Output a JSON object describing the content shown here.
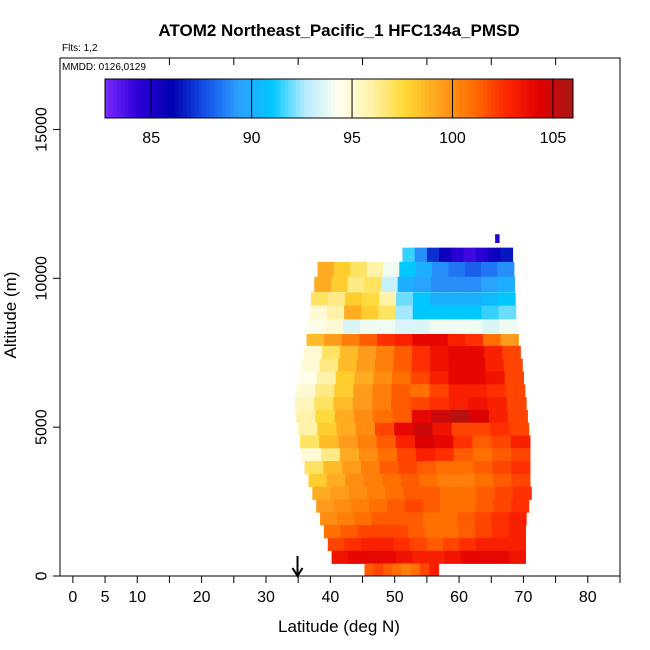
{
  "chart_data": {
    "type": "heatmap",
    "title": "ATOM2 Northeast_Pacific_1 HFC134a_PMSD",
    "flights_label": "Flts: 1,2",
    "mmdd_label": "MMDD: 0126,0129",
    "xlabel": "Latitude (deg N)",
    "ylabel": "Altitude (m)",
    "xlim": [
      -2,
      85
    ],
    "ylim": [
      0,
      17400
    ],
    "x_ticks": [
      0,
      5,
      10,
      20,
      30,
      40,
      50,
      60,
      70,
      80
    ],
    "x_tick_labels": [
      "0",
      "5",
      "10",
      "20",
      "30",
      "40",
      "50",
      "60",
      "70",
      "80"
    ],
    "x_minor_ticks": [
      15,
      25,
      35,
      45,
      55,
      65,
      75,
      85
    ],
    "y_ticks": [
      0,
      5000,
      10000,
      15000
    ],
    "y_tick_labels": [
      "0",
      "5000",
      "10000",
      "15000"
    ],
    "colorbar": {
      "min": 82.7,
      "max": 106.0,
      "ticks": [
        85,
        90,
        95,
        100,
        105
      ],
      "tick_labels": [
        "85",
        "90",
        "95",
        "100",
        "105"
      ],
      "colors": [
        "#7b2bff",
        "#2c00d6",
        "#0000b0",
        "#1450e8",
        "#2ea0ff",
        "#00c8ff",
        "#b8ecff",
        "#ffffee",
        "#fff2a8",
        "#ffd830",
        "#ffa020",
        "#ff7000",
        "#ff2800",
        "#e00000",
        "#a81818"
      ]
    },
    "arrow_latitude": 34.9,
    "bands": [
      {
        "alt": 11200,
        "h": 280,
        "lat0": 65.6,
        "lat1": 66.2,
        "values": [
          84.5
        ]
      },
      {
        "alt": 10550,
        "h": 480,
        "lat0": 51.2,
        "lat1": 68.3,
        "values": [
          91.5,
          89,
          87,
          85.5,
          84.5,
          84,
          84.5,
          85.5,
          86.5
        ]
      },
      {
        "alt": 10050,
        "h": 500,
        "lat0": 38.0,
        "lat1": 68.5,
        "values": [
          99,
          98,
          97,
          96,
          94,
          91,
          90,
          89,
          88.5,
          88,
          88.5,
          89
        ]
      },
      {
        "alt": 9550,
        "h": 500,
        "lat0": 37.5,
        "lat1": 68.6,
        "values": [
          99,
          98,
          96.5,
          97,
          93,
          90,
          89.5,
          89,
          89,
          89,
          89.5,
          90
        ]
      },
      {
        "alt": 9080,
        "h": 450,
        "lat0": 37.0,
        "lat1": 68.7,
        "values": [
          97,
          96.5,
          98,
          97.5,
          96,
          92,
          91,
          90,
          90,
          90,
          90.5,
          91
        ]
      },
      {
        "alt": 8620,
        "h": 460,
        "lat0": 36.8,
        "lat1": 68.8,
        "values": [
          95,
          96,
          99,
          98,
          97,
          92.5,
          91,
          91,
          91,
          91,
          91.5,
          92
        ]
      },
      {
        "alt": 8160,
        "h": 460,
        "lat0": 36.5,
        "lat1": 69.0,
        "values": [
          94.5,
          95,
          93.5,
          94,
          94,
          93.5,
          93.5,
          94,
          94,
          94,
          93.5,
          94
        ]
      },
      {
        "alt": 7730,
        "h": 400,
        "lat0": 36.3,
        "lat1": 69.2,
        "values": [
          98.5,
          99.5,
          100.5,
          101.5,
          102.5,
          103,
          104,
          104,
          103,
          102.5,
          101,
          99.5
        ]
      },
      {
        "alt": 7300,
        "h": 430,
        "lat0": 35.9,
        "lat1": 69.5,
        "values": [
          95,
          97,
          98.5,
          99.5,
          100.5,
          101.5,
          102.5,
          103.5,
          104,
          104,
          103,
          102
        ]
      },
      {
        "alt": 6870,
        "h": 430,
        "lat0": 35.5,
        "lat1": 69.8,
        "values": [
          95,
          96.5,
          98.5,
          99.5,
          100.5,
          101.5,
          102.5,
          103.5,
          104,
          104,
          103,
          102
        ]
      },
      {
        "alt": 6440,
        "h": 430,
        "lat0": 35.0,
        "lat1": 70.0,
        "values": [
          94.5,
          96,
          98,
          99,
          100,
          101,
          102,
          103,
          104,
          104,
          103.5,
          102
        ]
      },
      {
        "alt": 6010,
        "h": 430,
        "lat0": 34.7,
        "lat1": 70.2,
        "values": [
          95,
          96.5,
          98,
          99.5,
          100.5,
          101.5,
          101,
          102,
          103,
          103,
          102.5,
          102
        ]
      },
      {
        "alt": 5580,
        "h": 430,
        "lat0": 34.5,
        "lat1": 70.4,
        "values": [
          95.5,
          97,
          98.5,
          99.5,
          100.5,
          101.5,
          102,
          102.5,
          103,
          103.5,
          103,
          102
        ]
      },
      {
        "alt": 5150,
        "h": 430,
        "lat0": 34.7,
        "lat1": 70.6,
        "values": [
          96,
          97.5,
          99,
          100,
          101,
          101.5,
          104,
          105,
          105.5,
          104.5,
          103,
          102
        ]
      },
      {
        "alt": 4720,
        "h": 430,
        "lat0": 35.0,
        "lat1": 70.8,
        "values": [
          96,
          98,
          99,
          100,
          102,
          104,
          105,
          103.5,
          102,
          102,
          102.5,
          102
        ]
      },
      {
        "alt": 4290,
        "h": 430,
        "lat0": 35.3,
        "lat1": 71.0,
        "values": [
          97,
          98.5,
          99.5,
          100.5,
          101.5,
          103,
          104.5,
          104,
          102.5,
          101.5,
          102,
          103
        ]
      },
      {
        "alt": 3860,
        "h": 430,
        "lat0": 35.6,
        "lat1": 71.0,
        "values": [
          95,
          96.5,
          99,
          100,
          101,
          102,
          103,
          102.5,
          101.5,
          101,
          101.5,
          102
        ]
      },
      {
        "alt": 3430,
        "h": 430,
        "lat0": 36.0,
        "lat1": 71.0,
        "values": [
          97,
          98.5,
          99.5,
          100.5,
          101.5,
          102,
          101.5,
          101,
          101,
          101.5,
          102,
          102.5
        ]
      },
      {
        "alt": 3000,
        "h": 430,
        "lat0": 36.6,
        "lat1": 71.0,
        "values": [
          98,
          99,
          100,
          100.5,
          101,
          101.5,
          101,
          100.5,
          100.5,
          101,
          101.5,
          102
        ]
      },
      {
        "alt": 2570,
        "h": 430,
        "lat0": 37.2,
        "lat1": 71.2,
        "values": [
          99,
          99.5,
          100,
          100.5,
          101,
          101.5,
          101.5,
          101,
          101,
          101.5,
          102,
          102.5
        ]
      },
      {
        "alt": 2140,
        "h": 430,
        "lat0": 37.8,
        "lat1": 70.8,
        "values": [
          99.5,
          100,
          100.5,
          101,
          101.5,
          102,
          101.5,
          101,
          101,
          101.5,
          102,
          102.5
        ]
      },
      {
        "alt": 1710,
        "h": 430,
        "lat0": 38.4,
        "lat1": 70.4,
        "values": [
          100,
          100.5,
          101,
          101.5,
          101.5,
          101.5,
          101,
          101,
          101.5,
          102,
          102.5,
          103
        ]
      },
      {
        "alt": 1280,
        "h": 430,
        "lat0": 39.0,
        "lat1": 70.3,
        "values": [
          101,
          101.5,
          102,
          102,
          102,
          101.5,
          101,
          101,
          101.5,
          102,
          102.5,
          103
        ]
      },
      {
        "alt": 850,
        "h": 430,
        "lat0": 39.6,
        "lat1": 70.3,
        "values": [
          102,
          102.5,
          103,
          103,
          102.5,
          102,
          101.5,
          102,
          102.5,
          103,
          103,
          103
        ]
      },
      {
        "alt": 420,
        "h": 430,
        "lat0": 40.2,
        "lat1": 70.3,
        "values": [
          103.5,
          104,
          104,
          104,
          103.5,
          103,
          103,
          103.5,
          104,
          104,
          104,
          103.5
        ]
      },
      {
        "alt": 0,
        "h": 420,
        "lat0": 45.3,
        "lat1": 56.8,
        "values": [
          101.5,
          102,
          101.5,
          101,
          100.5,
          101,
          102,
          103
        ]
      }
    ]
  }
}
